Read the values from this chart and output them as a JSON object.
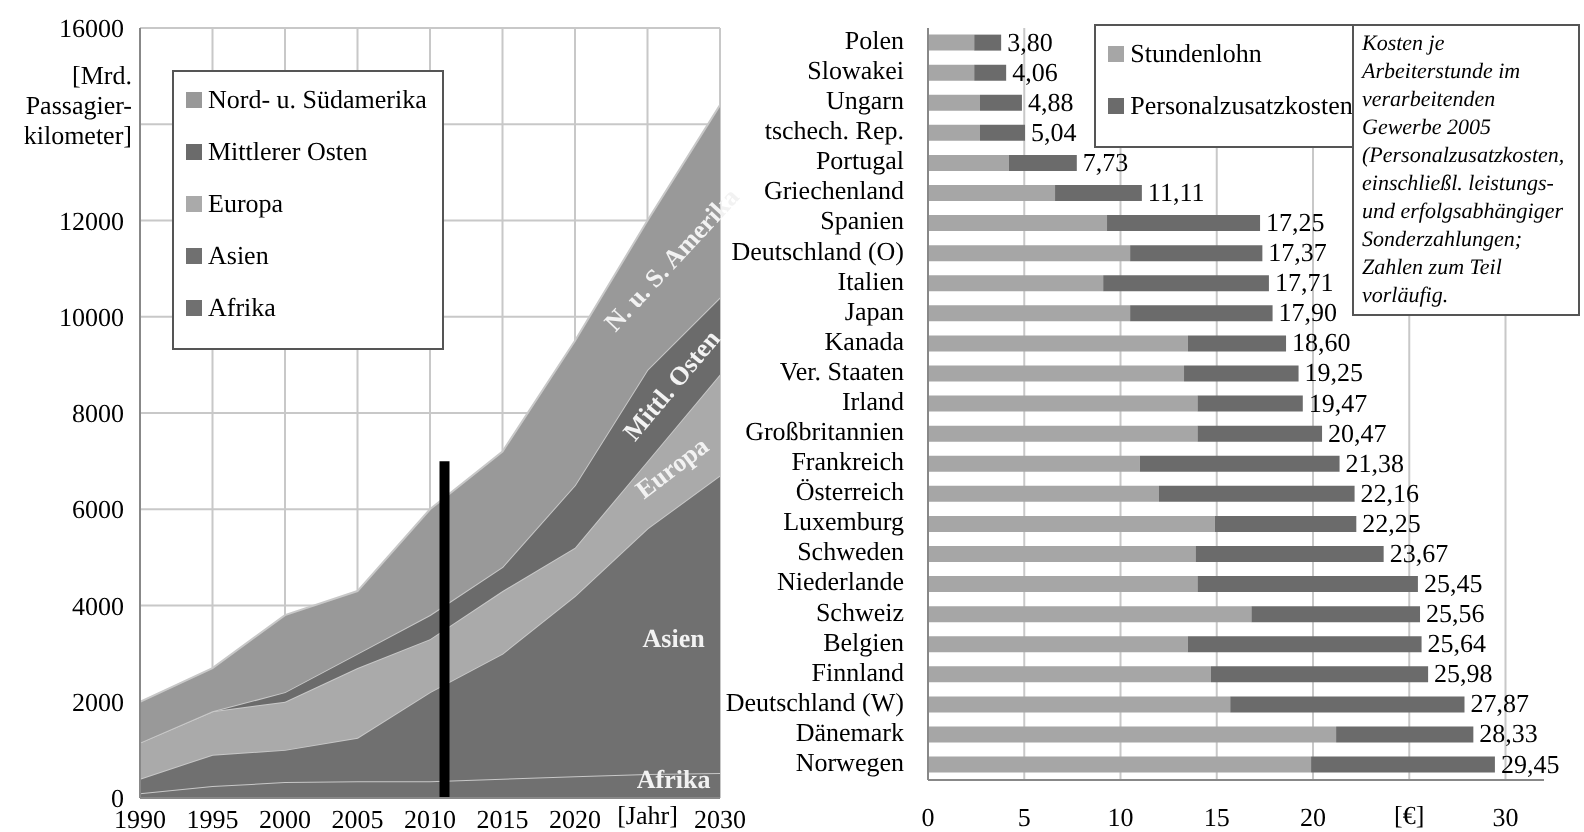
{
  "chart_data": [
    {
      "type": "area",
      "stacked": true,
      "ylabel": "[Mrd. Passagier-kilometer]",
      "xlabel": "[Jahr]",
      "x": [
        1990,
        1995,
        2000,
        2005,
        2010,
        2015,
        2020,
        2025,
        2030
      ],
      "xlim": [
        1990,
        2030
      ],
      "xticks": [
        1990,
        1995,
        2000,
        2005,
        2010,
        2015,
        2020,
        {
          "value": 2025,
          "label": null
        },
        2030
      ],
      "ylim": [
        0,
        16000
      ],
      "yticks": [
        0,
        2000,
        4000,
        6000,
        8000,
        10000,
        12000,
        {
          "value": 14000,
          "label": null
        },
        16000
      ],
      "grid": true,
      "legend": "top left",
      "series": [
        {
          "name": "Afrika",
          "color": "#707070",
          "values": [
            100,
            250,
            330,
            350,
            350,
            400,
            450,
            500,
            520
          ]
        },
        {
          "name": "Asien",
          "color": "#707070",
          "values": [
            300,
            650,
            670,
            900,
            1850,
            2600,
            3750,
            5100,
            6180
          ]
        },
        {
          "name": "Europa",
          "color": "#aaaaaa",
          "values": [
            750,
            900,
            1000,
            1450,
            1100,
            1300,
            1000,
            1400,
            2100
          ]
        },
        {
          "name": "Mittlerer Osten",
          "color": "#6b6b6b",
          "values": [
            0,
            0,
            200,
            300,
            500,
            500,
            1300,
            1900,
            1600
          ]
        },
        {
          "name": "Nord- u. Südamerika",
          "color": "#999999",
          "values": [
            850,
            900,
            1600,
            1300,
            2200,
            2400,
            3000,
            3100,
            4000
          ]
        },
        {
          "type": "line",
          "color": "#000000",
          "x": [
            2011,
            2011
          ],
          "values": [
            0,
            7000
          ]
        }
      ],
      "annotations": [
        "N. u. S. Amerika",
        "Mittl. Osten",
        "Europa",
        "Asien",
        "Afrika"
      ]
    },
    {
      "type": "bar",
      "stacked": true,
      "orientation": "horizontal",
      "xlabel": "[€]",
      "categories": [
        "Polen",
        "Slowakei",
        "Ungarn",
        "tschech. Rep.",
        "Portugal",
        "Griechenland",
        "Spanien",
        "Deutschland (O)",
        "Italien",
        "Japan",
        "Kanada",
        "Ver. Staaten",
        "Irland",
        "Großbritannien",
        "Frankreich",
        "Österreich",
        "Luxemburg",
        "Schweden",
        "Niederlande",
        "Schweiz",
        "Belgien",
        "Finnland",
        "Deutschland (W)",
        "Dänemark",
        "Norwegen"
      ],
      "xlim": [
        0,
        32
      ],
      "xticks": [
        0,
        5,
        10,
        15,
        20,
        {
          "value": 25,
          "label": null
        },
        30
      ],
      "grid": "x",
      "legend": "top",
      "series": [
        {
          "name": "Stundenlohn",
          "color": "#a6a6a6",
          "values": [
            2.4,
            2.4,
            2.7,
            2.7,
            4.2,
            6.6,
            9.3,
            10.5,
            9.1,
            10.5,
            13.5,
            13.3,
            14.0,
            14.0,
            11.0,
            12.0,
            14.9,
            13.9,
            14.0,
            16.8,
            13.5,
            14.7,
            15.7,
            21.2,
            19.9
          ]
        },
        {
          "name": "Personalzusatzkosten",
          "color": "#6b6b6b",
          "values": [
            1.4,
            1.66,
            2.18,
            2.34,
            3.53,
            4.51,
            7.95,
            6.87,
            8.61,
            7.4,
            5.1,
            5.95,
            5.47,
            6.47,
            10.38,
            10.16,
            7.35,
            9.77,
            11.45,
            8.76,
            12.14,
            11.28,
            12.17,
            7.13,
            9.55
          ]
        }
      ],
      "totals": [
        "3,80",
        "4,06",
        "4,88",
        "5,04",
        "7,73",
        "11,11",
        "17,25",
        "17,37",
        "17,71",
        "17,90",
        "18,60",
        "19,25",
        "19,47",
        "20,47",
        "21,38",
        "22,16",
        "22,25",
        "23,67",
        "25,45",
        "25,56",
        "25,64",
        "25,98",
        "27,87",
        "28,33",
        "29,45"
      ],
      "annotations": [
        "Kosten je Arbeiterstunde im verarbeitenden Gewerbe 2005 (Personalzusatzkosten, einschließl. leistungs- und erfolgsabhängiger Sonderzahlungen; Zahlen zum Teil vorläufig."
      ]
    }
  ]
}
